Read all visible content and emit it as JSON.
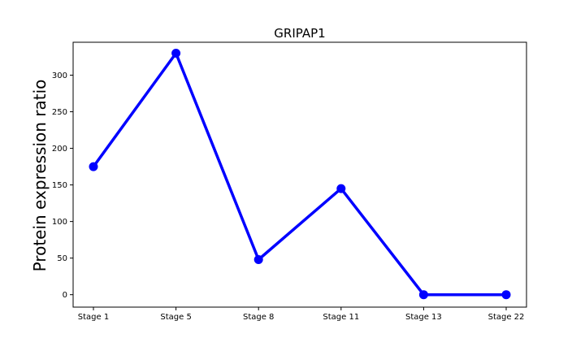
{
  "chart_data": {
    "type": "line",
    "title": "GRIPAP1",
    "xlabel": "",
    "ylabel": "Protein expression ratio",
    "categories": [
      "Stage 1",
      "Stage 5",
      "Stage 8",
      "Stage 11",
      "Stage 13",
      "Stage 22"
    ],
    "series": [
      {
        "values": [
          175,
          330,
          48,
          145,
          0,
          0
        ]
      }
    ],
    "yticks": [
      0,
      50,
      100,
      150,
      200,
      250,
      300
    ],
    "ylim": [
      -17,
      345
    ],
    "grid": false,
    "legend": "none",
    "line_color": "#0000ff",
    "marker": "circle"
  }
}
